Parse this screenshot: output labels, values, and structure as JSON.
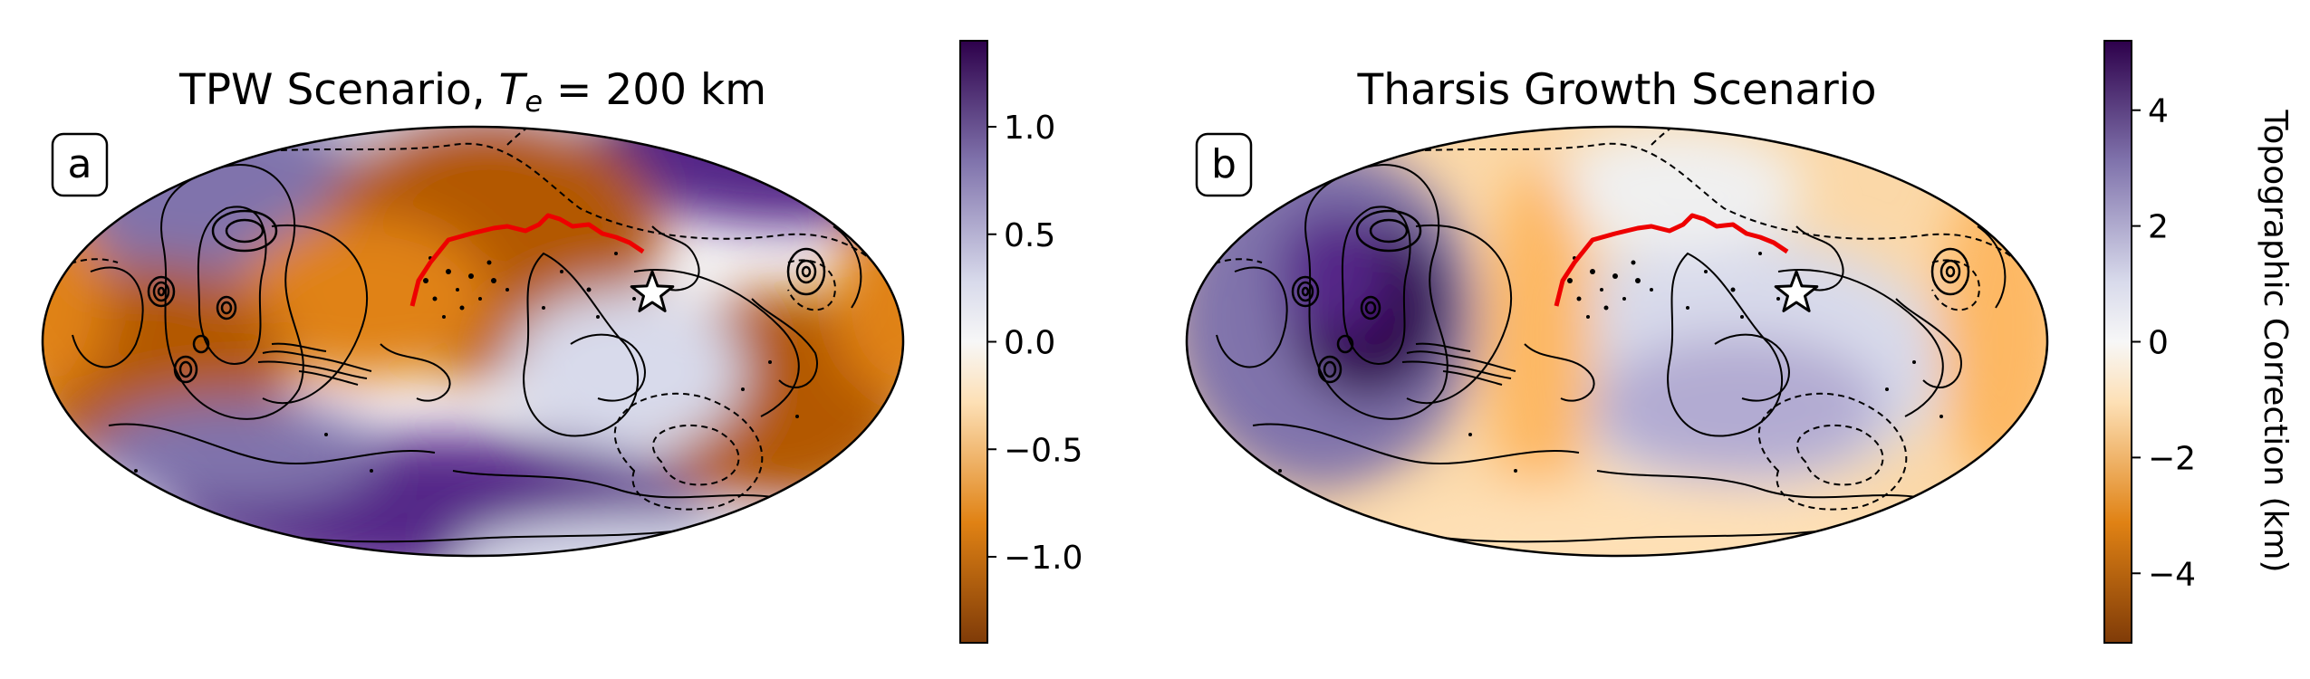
{
  "chart_data": [
    {
      "type": "heatmap",
      "panel_label": "a",
      "title_prefix": "TPW Scenario, ",
      "title_math_symbol": "T",
      "title_math_sub": "e",
      "title_suffix": " = 200 km",
      "projection": "Mollweide (global map)",
      "colormap": "PuOr",
      "colorbar": {
        "ticks": [
          -1.0,
          -0.5,
          0.0,
          0.5,
          1.0
        ],
        "tick_labels": [
          "−1.0",
          "−0.5",
          "0.0",
          "0.5",
          "1.0"
        ],
        "range": [
          -1.4,
          1.4
        ],
        "label": ""
      },
      "overlays": [
        "topography contours (black)",
        "red traverse line",
        "white star marker"
      ]
    },
    {
      "type": "heatmap",
      "panel_label": "b",
      "title": "Tharsis Growth Scenario",
      "projection": "Mollweide (global map)",
      "colormap": "PuOr",
      "colorbar": {
        "ticks": [
          -4,
          -2,
          0,
          2,
          4
        ],
        "tick_labels": [
          "−4",
          "−2",
          "0",
          "2",
          "4"
        ],
        "range": [
          -5.2,
          5.2
        ],
        "label": "Topographic Correction (km)"
      },
      "overlays": [
        "topography contours (black)",
        "red traverse line",
        "white star marker"
      ]
    }
  ],
  "colors": {
    "negative_dark": "#7f3b08",
    "negative_mid": "#e08214",
    "neutral": "#f7f7f7",
    "positive_mid": "#8073ac",
    "positive_dark": "#2d004b",
    "traverse_line": "#ee0000",
    "contour_line": "#000000"
  }
}
